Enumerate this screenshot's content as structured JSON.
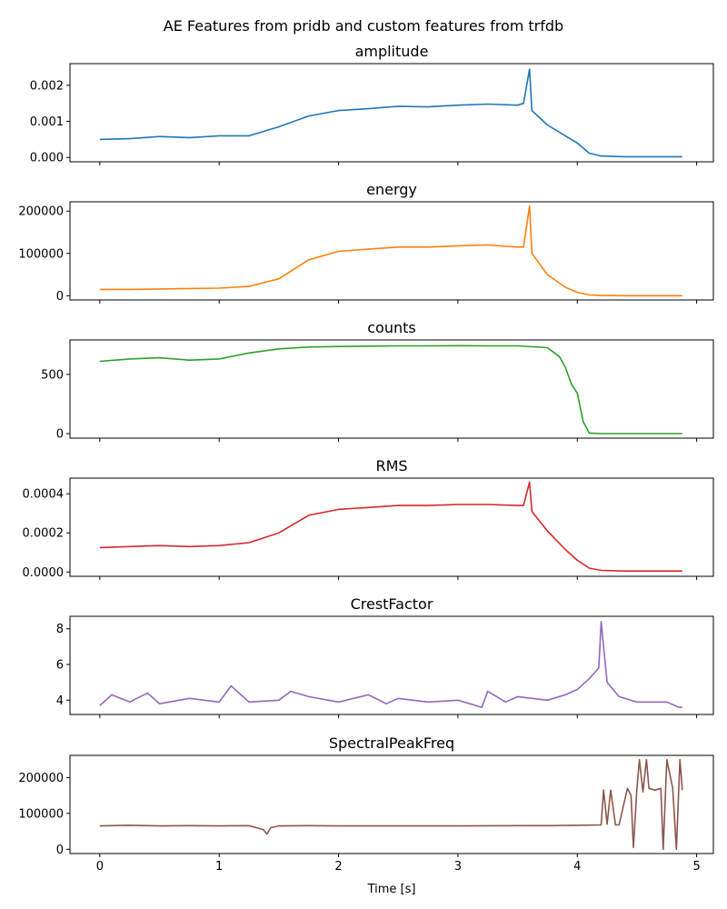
{
  "figure": {
    "title": "AE Features from pridb and custom features from trfdb",
    "xlabel": "Time [s]"
  },
  "chart_data": [
    {
      "type": "line",
      "title": "amplitude",
      "color": "#1f77b4",
      "xlim": [
        -0.25,
        5.14
      ],
      "ylim": [
        -0.00012,
        0.0026
      ],
      "xticks": [
        0,
        1,
        2,
        3,
        4,
        5
      ],
      "xtick_labels": [
        "0",
        "1",
        "2",
        "3",
        "4",
        "5"
      ],
      "show_xtick_labels": false,
      "yticks": [
        0,
        0.001,
        0.002
      ],
      "ytick_labels": [
        "0.000",
        "0.001",
        "0.002"
      ],
      "x": [
        0,
        0.25,
        0.5,
        0.75,
        1.0,
        1.25,
        1.5,
        1.75,
        2.0,
        2.25,
        2.5,
        2.75,
        3.0,
        3.25,
        3.5,
        3.55,
        3.6,
        3.62,
        3.75,
        3.9,
        4.0,
        4.1,
        4.2,
        4.4,
        4.6,
        4.88
      ],
      "y": [
        0.0005,
        0.00052,
        0.00058,
        0.00055,
        0.0006,
        0.0006,
        0.00085,
        0.00115,
        0.0013,
        0.00135,
        0.00142,
        0.0014,
        0.00145,
        0.00148,
        0.00145,
        0.0015,
        0.00245,
        0.0013,
        0.0009,
        0.0006,
        0.0004,
        0.00012,
        4e-05,
        2e-05,
        2e-05,
        2e-05
      ]
    },
    {
      "type": "line",
      "title": "energy",
      "color": "#ff7f0e",
      "xlim": [
        -0.25,
        5.14
      ],
      "ylim": [
        -10000,
        222000
      ],
      "xticks": [
        0,
        1,
        2,
        3,
        4,
        5
      ],
      "xtick_labels": [
        "0",
        "1",
        "2",
        "3",
        "4",
        "5"
      ],
      "show_xtick_labels": false,
      "yticks": [
        0,
        100000,
        200000
      ],
      "ytick_labels": [
        "0",
        "100000",
        "200000"
      ],
      "x": [
        0,
        0.25,
        0.5,
        0.75,
        1.0,
        1.25,
        1.5,
        1.75,
        2.0,
        2.25,
        2.5,
        2.75,
        3.0,
        3.25,
        3.5,
        3.55,
        3.6,
        3.62,
        3.75,
        3.9,
        4.0,
        4.1,
        4.2,
        4.4,
        4.6,
        4.88
      ],
      "y": [
        15000,
        15000,
        16000,
        17000,
        18000,
        22000,
        40000,
        85000,
        105000,
        110000,
        115000,
        115000,
        118000,
        120000,
        115000,
        115000,
        212000,
        100000,
        50000,
        20000,
        8000,
        2000,
        500,
        0,
        0,
        0
      ]
    },
    {
      "type": "line",
      "title": "counts",
      "color": "#2ca02c",
      "xlim": [
        -0.25,
        5.14
      ],
      "ylim": [
        -38,
        790
      ],
      "xticks": [
        0,
        1,
        2,
        3,
        4,
        5
      ],
      "xtick_labels": [
        "0",
        "1",
        "2",
        "3",
        "4",
        "5"
      ],
      "show_xtick_labels": false,
      "yticks": [
        0,
        500
      ],
      "ytick_labels": [
        "0",
        "500"
      ],
      "x": [
        0,
        0.25,
        0.5,
        0.75,
        1.0,
        1.25,
        1.5,
        1.75,
        2.0,
        2.25,
        2.5,
        2.75,
        3.0,
        3.25,
        3.5,
        3.75,
        3.85,
        3.9,
        3.95,
        4.0,
        4.05,
        4.1,
        4.2,
        4.4,
        4.6,
        4.88
      ],
      "y": [
        610,
        630,
        640,
        620,
        630,
        680,
        715,
        730,
        735,
        738,
        740,
        740,
        742,
        740,
        740,
        725,
        650,
        560,
        420,
        340,
        100,
        5,
        0,
        0,
        0,
        0
      ]
    },
    {
      "type": "line",
      "title": "RMS",
      "color": "#d62728",
      "xlim": [
        -0.25,
        5.14
      ],
      "ylim": [
        -2.2e-05,
        0.00048
      ],
      "xticks": [
        0,
        1,
        2,
        3,
        4,
        5
      ],
      "xtick_labels": [
        "0",
        "1",
        "2",
        "3",
        "4",
        "5"
      ],
      "show_xtick_labels": false,
      "yticks": [
        0,
        0.0002,
        0.0004
      ],
      "ytick_labels": [
        "0.0000",
        "0.0002",
        "0.0004"
      ],
      "x": [
        0,
        0.25,
        0.5,
        0.75,
        1.0,
        1.25,
        1.5,
        1.75,
        2.0,
        2.25,
        2.5,
        2.75,
        3.0,
        3.25,
        3.5,
        3.55,
        3.6,
        3.62,
        3.75,
        3.9,
        4.0,
        4.1,
        4.2,
        4.4,
        4.6,
        4.88
      ],
      "y": [
        0.000125,
        0.00013,
        0.000135,
        0.00013,
        0.000135,
        0.00015,
        0.0002,
        0.00029,
        0.00032,
        0.00033,
        0.00034,
        0.00034,
        0.000345,
        0.000345,
        0.00034,
        0.00034,
        0.00046,
        0.00031,
        0.00021,
        0.000115,
        6e-05,
        2e-05,
        8e-06,
        5e-06,
        5e-06,
        5e-06
      ]
    },
    {
      "type": "line",
      "title": "CrestFactor",
      "color": "#9467bd",
      "xlim": [
        -0.25,
        5.14
      ],
      "ylim": [
        3.2,
        8.7
      ],
      "xticks": [
        0,
        1,
        2,
        3,
        4,
        5
      ],
      "xtick_labels": [
        "0",
        "1",
        "2",
        "3",
        "4",
        "5"
      ],
      "show_xtick_labels": false,
      "yticks": [
        4,
        6,
        8
      ],
      "ytick_labels": [
        "4",
        "6",
        "8"
      ],
      "x": [
        0,
        0.1,
        0.25,
        0.4,
        0.5,
        0.75,
        1.0,
        1.1,
        1.25,
        1.5,
        1.6,
        1.75,
        2.0,
        2.25,
        2.4,
        2.5,
        2.75,
        3.0,
        3.2,
        3.25,
        3.4,
        3.5,
        3.75,
        3.9,
        4.0,
        4.1,
        4.18,
        4.2,
        4.25,
        4.35,
        4.5,
        4.75,
        4.85,
        4.88
      ],
      "y": [
        3.7,
        4.3,
        3.9,
        4.4,
        3.8,
        4.1,
        3.9,
        4.8,
        3.9,
        4.0,
        4.5,
        4.2,
        3.9,
        4.3,
        3.8,
        4.1,
        3.9,
        4.0,
        3.6,
        4.5,
        3.9,
        4.2,
        4.0,
        4.3,
        4.6,
        5.2,
        5.8,
        8.4,
        5.0,
        4.2,
        3.9,
        3.9,
        3.6,
        3.6
      ]
    },
    {
      "type": "line",
      "title": "SpectralPeakFreq",
      "color": "#8c564b",
      "xlim": [
        -0.25,
        5.14
      ],
      "ylim": [
        -12000,
        262000
      ],
      "xticks": [
        0,
        1,
        2,
        3,
        4,
        5
      ],
      "xtick_labels": [
        "0",
        "1",
        "2",
        "3",
        "4",
        "5"
      ],
      "show_xtick_labels": true,
      "yticks": [
        0,
        100000,
        200000
      ],
      "ytick_labels": [
        "0",
        "100000",
        "200000"
      ],
      "x": [
        0,
        0.25,
        0.5,
        0.75,
        1.0,
        1.25,
        1.37,
        1.4,
        1.43,
        1.5,
        1.75,
        2.0,
        2.5,
        3.0,
        3.5,
        3.75,
        4.0,
        4.2,
        4.22,
        4.25,
        4.28,
        4.32,
        4.35,
        4.42,
        4.45,
        4.47,
        4.5,
        4.52,
        4.55,
        4.58,
        4.6,
        4.65,
        4.7,
        4.72,
        4.75,
        4.8,
        4.83,
        4.86,
        4.88
      ],
      "y": [
        65000,
        67000,
        65000,
        66000,
        65000,
        66000,
        55000,
        42000,
        60000,
        65000,
        66000,
        65000,
        65000,
        65000,
        66000,
        66000,
        67000,
        68000,
        165000,
        70000,
        165000,
        68000,
        68000,
        170000,
        150000,
        5000,
        170000,
        250000,
        160000,
        250000,
        170000,
        165000,
        170000,
        0,
        250000,
        170000,
        0,
        250000,
        165000
      ]
    }
  ]
}
